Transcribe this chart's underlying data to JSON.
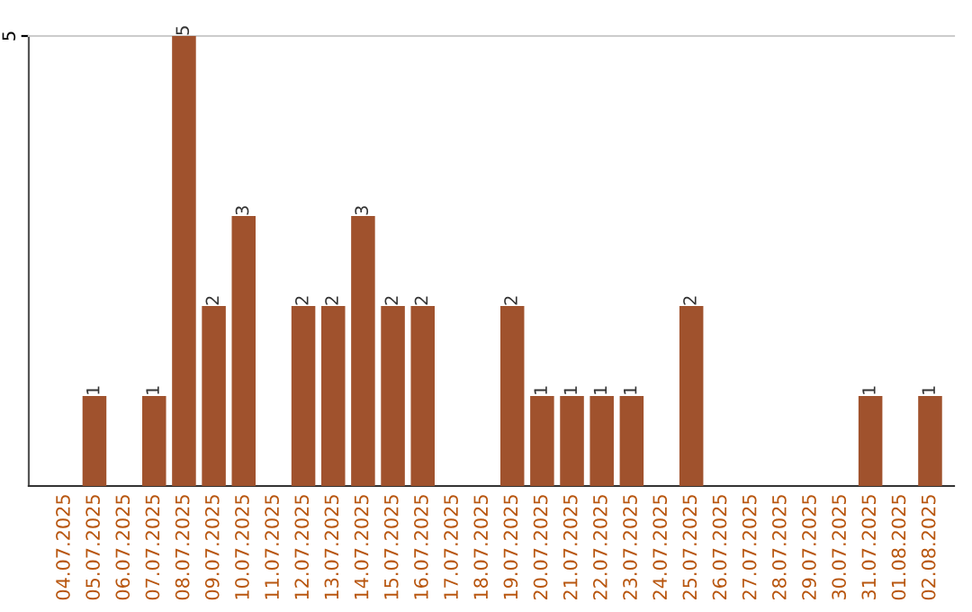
{
  "chart_data": {
    "type": "bar",
    "categories": [
      "04.07.2025",
      "05.07.2025",
      "06.07.2025",
      "07.07.2025",
      "08.07.2025",
      "09.07.2025",
      "10.07.2025",
      "11.07.2025",
      "12.07.2025",
      "13.07.2025",
      "14.07.2025",
      "15.07.2025",
      "16.07.2025",
      "17.07.2025",
      "18.07.2025",
      "19.07.2025",
      "20.07.2025",
      "21.07.2025",
      "22.07.2025",
      "23.07.2025",
      "24.07.2025",
      "25.07.2025",
      "26.07.2025",
      "27.07.2025",
      "28.07.2025",
      "29.07.2025",
      "30.07.2025",
      "31.07.2025",
      "01.08.2025",
      "02.08.2025"
    ],
    "values": [
      0,
      1,
      0,
      1,
      5,
      2,
      3,
      0,
      2,
      2,
      3,
      2,
      2,
      0,
      0,
      2,
      1,
      1,
      1,
      1,
      0,
      2,
      0,
      0,
      0,
      0,
      0,
      1,
      0,
      1
    ],
    "value_labels": [
      null,
      "1",
      null,
      "1",
      "5",
      "2",
      "3",
      null,
      "2",
      "2",
      "3",
      "2",
      "2",
      null,
      null,
      "2",
      "1",
      "1",
      "1",
      "1",
      null,
      "2",
      null,
      null,
      null,
      null,
      null,
      "1",
      null,
      "1"
    ],
    "color": "#a0522d",
    "ylim": [
      0,
      5
    ],
    "yticks": [
      5
    ]
  }
}
